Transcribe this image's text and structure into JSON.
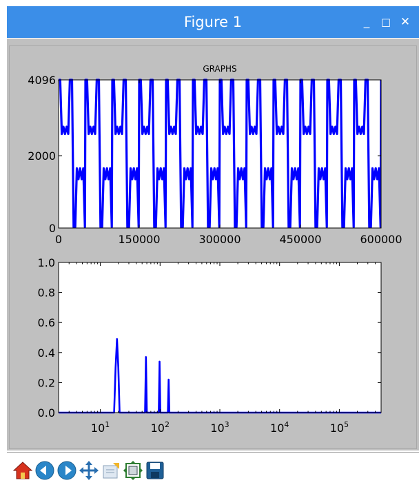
{
  "window": {
    "title": "Figure 1",
    "controls": {
      "minimize": "_",
      "maximize": "□",
      "close": "✕"
    }
  },
  "toolbar": {
    "buttons": [
      {
        "name": "home",
        "icon": "home-icon"
      },
      {
        "name": "back",
        "icon": "arrow-left-icon"
      },
      {
        "name": "forward",
        "icon": "arrow-right-icon"
      },
      {
        "name": "pan",
        "icon": "move-icon"
      },
      {
        "name": "zoom",
        "icon": "zoom-rect-icon"
      },
      {
        "name": "subplots",
        "icon": "configure-subplots-icon"
      },
      {
        "name": "save",
        "icon": "save-icon"
      }
    ]
  },
  "colors": {
    "line": "#0000ff",
    "titlebar": "#3b8ee8",
    "figure_bg": "#c0c0c0"
  },
  "chart_data": [
    {
      "type": "line",
      "title": "GRAPHS",
      "xlabel": "",
      "ylabel": "",
      "xlim": [
        0,
        600000
      ],
      "ylim": [
        0,
        4096
      ],
      "xticks": [
        0,
        150000,
        300000,
        450000,
        600000
      ],
      "xtick_labels": [
        "0",
        "150000",
        "300000",
        "450000",
        "600000"
      ],
      "yticks": [
        0,
        2000,
        4096
      ],
      "ytick_labels": [
        "0",
        "2000",
        "4096"
      ],
      "grid": false,
      "pattern": {
        "description": "periodic composite waveform",
        "period": 50000,
        "points": [
          [
            0,
            4096
          ],
          [
            3000,
            4096
          ],
          [
            6000,
            2600
          ],
          [
            9000,
            2800
          ],
          [
            12000,
            2600
          ],
          [
            15000,
            2800
          ],
          [
            18000,
            2600
          ],
          [
            21000,
            4096
          ],
          [
            25000,
            4096
          ],
          [
            28000,
            30
          ],
          [
            31000,
            30
          ],
          [
            34000,
            1650
          ],
          [
            37000,
            1350
          ],
          [
            40000,
            1650
          ],
          [
            43000,
            1350
          ],
          [
            46000,
            1650
          ],
          [
            49000,
            30
          ],
          [
            50000,
            4096
          ]
        ],
        "end": 600000
      }
    },
    {
      "type": "line",
      "title": "",
      "xlabel": "",
      "ylabel": "",
      "xscale": "log",
      "xlim": [
        2,
        500000
      ],
      "ylim": [
        0,
        1.0
      ],
      "xticks": [
        10,
        100,
        1000,
        10000,
        100000
      ],
      "xtick_labels": [
        [
          "10",
          "1"
        ],
        [
          "10",
          "2"
        ],
        [
          "10",
          "3"
        ],
        [
          "10",
          "4"
        ],
        [
          "10",
          "5"
        ]
      ],
      "yticks": [
        0,
        0.2,
        0.4,
        0.6,
        0.8,
        1.0
      ],
      "ytick_labels": [
        "0.0",
        "0.2",
        "0.4",
        "0.6",
        "0.8",
        "1.0"
      ],
      "grid": false,
      "series": [
        {
          "values": [
            [
              2,
              0.0
            ],
            [
              17,
              0.0
            ],
            [
              18,
              0.3
            ],
            [
              19,
              0.49
            ],
            [
              20,
              0.3
            ],
            [
              21,
              0.0
            ],
            [
              56,
              0.0
            ],
            [
              58,
              0.37
            ],
            [
              60,
              0.0
            ],
            [
              95,
              0.0
            ],
            [
              98,
              0.34
            ],
            [
              101,
              0.0
            ],
            [
              135,
              0.0
            ],
            [
              139,
              0.22
            ],
            [
              143,
              0.0
            ],
            [
              500000,
              0.0
            ]
          ]
        }
      ]
    }
  ]
}
